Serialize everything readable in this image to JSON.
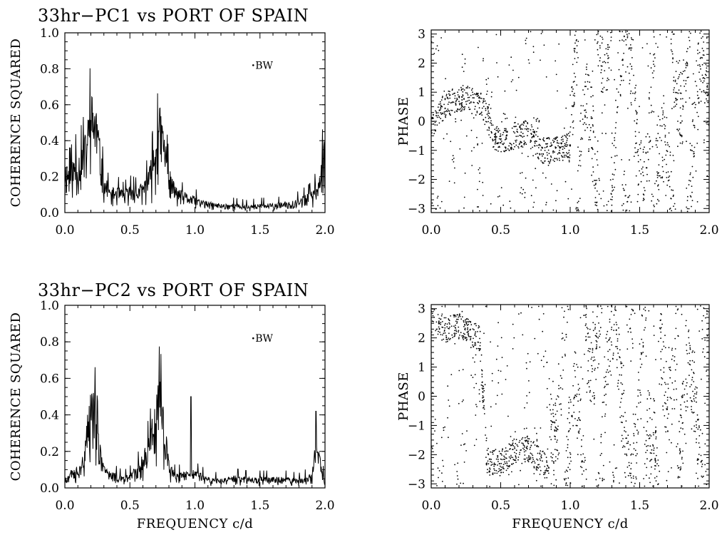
{
  "chart_data": [
    {
      "id": "p1",
      "type": "line",
      "title": "33hr−PC1 vs PORT OF SPAIN",
      "xlabel": "",
      "ylabel": "COHERENCE SQUARED",
      "xlim": [
        0,
        2
      ],
      "ylim": [
        0,
        1
      ],
      "xticks": [
        "0.0",
        "0.5",
        "1.0",
        "1.5",
        "2.0"
      ],
      "yticks": [
        "0.0",
        "0.2",
        "0.4",
        "0.6",
        "0.8",
        "1.0"
      ],
      "annotation": "BW",
      "annotation_at": {
        "x": 1.47,
        "y": 0.8
      },
      "envelope": [
        [
          0.0,
          0.3
        ],
        [
          0.04,
          0.27
        ],
        [
          0.08,
          0.33
        ],
        [
          0.12,
          0.36
        ],
        [
          0.16,
          0.45
        ],
        [
          0.2,
          0.66
        ],
        [
          0.22,
          0.68
        ],
        [
          0.24,
          0.64
        ],
        [
          0.27,
          0.4
        ],
        [
          0.3,
          0.22
        ],
        [
          0.35,
          0.13
        ],
        [
          0.4,
          0.15
        ],
        [
          0.45,
          0.12
        ],
        [
          0.5,
          0.15
        ],
        [
          0.55,
          0.14
        ],
        [
          0.6,
          0.17
        ],
        [
          0.65,
          0.25
        ],
        [
          0.7,
          0.45
        ],
        [
          0.73,
          0.6
        ],
        [
          0.76,
          0.5
        ],
        [
          0.8,
          0.25
        ],
        [
          0.85,
          0.15
        ],
        [
          0.9,
          0.12
        ],
        [
          1.0,
          0.09
        ],
        [
          1.1,
          0.06
        ],
        [
          1.2,
          0.05
        ],
        [
          1.3,
          0.05
        ],
        [
          1.4,
          0.04
        ],
        [
          1.5,
          0.05
        ],
        [
          1.6,
          0.05
        ],
        [
          1.7,
          0.06
        ],
        [
          1.8,
          0.08
        ],
        [
          1.9,
          0.12
        ],
        [
          1.95,
          0.2
        ],
        [
          1.98,
          0.35
        ],
        [
          2.0,
          0.48
        ]
      ]
    },
    {
      "id": "p2",
      "type": "scatter",
      "title": "",
      "xlabel": "",
      "ylabel": "PHASE",
      "xlim": [
        0,
        2
      ],
      "ylim": [
        -3.14,
        3.14
      ],
      "xticks": [
        "0.0",
        "0.5",
        "1.0",
        "1.5",
        "2.0"
      ],
      "yticks": [
        "−3",
        "−2",
        "−1",
        "0",
        "1",
        "2",
        "3"
      ],
      "phase_trend": [
        [
          0.0,
          -0.3
        ],
        [
          0.05,
          0.3
        ],
        [
          0.15,
          0.7
        ],
        [
          0.25,
          0.8
        ],
        [
          0.35,
          0.6
        ],
        [
          0.4,
          0.2
        ],
        [
          0.45,
          -0.5
        ],
        [
          0.5,
          -0.7
        ],
        [
          0.6,
          -0.5
        ],
        [
          0.7,
          -0.4
        ],
        [
          0.8,
          -1.0
        ],
        [
          0.9,
          -1.0
        ],
        [
          1.0,
          -0.8
        ]
      ]
    },
    {
      "id": "p3",
      "type": "line",
      "title": "33hr−PC2 vs PORT OF SPAIN",
      "xlabel": "FREQUENCY c/d",
      "ylabel": "COHERENCE SQUARED",
      "xlim": [
        0,
        2
      ],
      "ylim": [
        0,
        1
      ],
      "xticks": [
        "0.0",
        "0.5",
        "1.0",
        "1.5",
        "2.0"
      ],
      "yticks": [
        "0.0",
        "0.2",
        "0.4",
        "0.6",
        "0.8",
        "1.0"
      ],
      "annotation": "BW",
      "annotation_at": {
        "x": 1.47,
        "y": 0.8
      },
      "envelope": [
        [
          0.0,
          0.05
        ],
        [
          0.05,
          0.1
        ],
        [
          0.1,
          0.12
        ],
        [
          0.15,
          0.2
        ],
        [
          0.18,
          0.45
        ],
        [
          0.2,
          0.55
        ],
        [
          0.23,
          0.53
        ],
        [
          0.26,
          0.3
        ],
        [
          0.3,
          0.12
        ],
        [
          0.35,
          0.09
        ],
        [
          0.4,
          0.08
        ],
        [
          0.45,
          0.06
        ],
        [
          0.5,
          0.08
        ],
        [
          0.55,
          0.12
        ],
        [
          0.6,
          0.2
        ],
        [
          0.65,
          0.3
        ],
        [
          0.7,
          0.5
        ],
        [
          0.73,
          0.62
        ],
        [
          0.76,
          0.45
        ],
        [
          0.8,
          0.15
        ],
        [
          0.85,
          0.08
        ],
        [
          0.9,
          0.09
        ],
        [
          1.0,
          0.1
        ],
        [
          1.1,
          0.06
        ],
        [
          1.2,
          0.05
        ],
        [
          1.3,
          0.07
        ],
        [
          1.4,
          0.06
        ],
        [
          1.5,
          0.06
        ],
        [
          1.6,
          0.06
        ],
        [
          1.7,
          0.06
        ],
        [
          1.8,
          0.05
        ],
        [
          1.9,
          0.08
        ],
        [
          1.94,
          0.35
        ],
        [
          1.97,
          0.12
        ],
        [
          2.0,
          0.05
        ]
      ],
      "spikes": [
        [
          0.97,
          0.5
        ],
        [
          1.93,
          0.42
        ]
      ]
    },
    {
      "id": "p4",
      "type": "scatter",
      "title": "",
      "xlabel": "FREQUENCY c/d",
      "ylabel": "PHASE",
      "xlim": [
        0,
        2
      ],
      "ylim": [
        -3.14,
        3.14
      ],
      "xticks": [
        "0.0",
        "0.5",
        "1.0",
        "1.5",
        "2.0"
      ],
      "yticks": [
        "−3",
        "−2",
        "−1",
        "0",
        "1",
        "2",
        "3"
      ],
      "phase_trend": [
        [
          0.0,
          2.6
        ],
        [
          0.1,
          2.3
        ],
        [
          0.2,
          2.4
        ],
        [
          0.3,
          2.1
        ],
        [
          0.35,
          2.0
        ],
        [
          0.4,
          -2.2
        ],
        [
          0.5,
          -2.3
        ],
        [
          0.6,
          -1.9
        ],
        [
          0.7,
          -1.8
        ],
        [
          0.8,
          -2.3
        ],
        [
          0.85,
          -2.5
        ]
      ]
    }
  ]
}
